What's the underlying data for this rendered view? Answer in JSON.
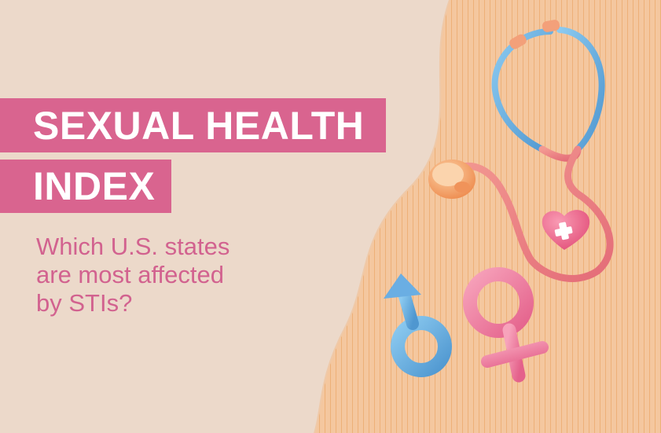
{
  "hero": {
    "title_line_1": "SEXUAL HEALTH",
    "title_line_2": "INDEX",
    "subtitle_lines": [
      "Which U.S. states",
      "are most affected",
      "by STIs?"
    ]
  },
  "illustration": {
    "icons": [
      "stethoscope-icon",
      "heart-cross-icon",
      "male-symbol-icon",
      "female-symbol-icon"
    ]
  },
  "colors": {
    "background": "#ecd9ca",
    "accent_band": "#d9648f",
    "subtitle_text": "#d2628f",
    "stripes_bg": "#f4c79f",
    "stripe_lines": "#e9a25d",
    "stethoscope_tube": "#ee7f82",
    "stethoscope_blue": "#6fb3e0",
    "stethoscope_chest": "#f6a96e",
    "heart": "#f06a8c",
    "male_symbol": "#6aaee3",
    "female_symbol": "#f07fa0"
  }
}
